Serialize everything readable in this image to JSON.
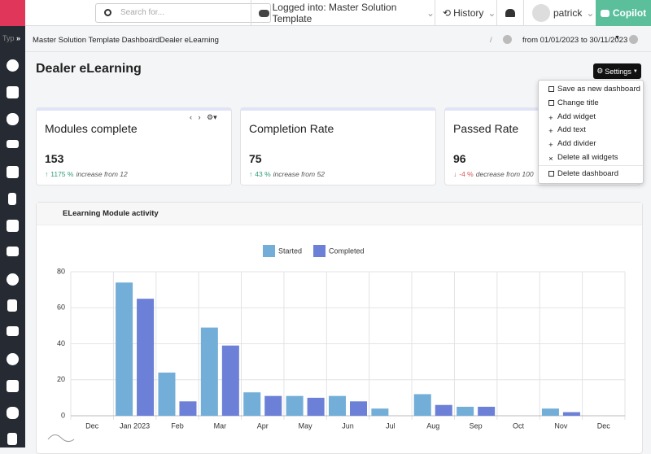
{
  "topbar": {
    "search_placeholder": "Search for...",
    "logged_into": "Logged into: Master Solution Template",
    "history": "History",
    "user": "patrick",
    "copilot": "Copilot"
  },
  "sidebar": {
    "tab": "Typ"
  },
  "breadcrumb": {
    "items": [
      "Master Solution Template Dashboard",
      "Dealer eLearning"
    ],
    "date_range": "from 01/01/2023 to 30/11/2023"
  },
  "page": {
    "title": "Dealer eLearning",
    "settings_button": "Settings"
  },
  "settings_menu": [
    "Save as new dashboard",
    "Change title",
    "Add widget",
    "Add text",
    "Add divider",
    "Delete all widgets",
    "Delete dashboard"
  ],
  "widgets": [
    {
      "title": "Modules complete",
      "value": "153",
      "change": "1175 %",
      "change_text": "increase from 12",
      "direction": "up",
      "color": "#2f9e76"
    },
    {
      "title": "Completion Rate",
      "value": "75",
      "change": "43 %",
      "change_text": "increase from 52",
      "direction": "up",
      "color": "#2f9e76"
    },
    {
      "title": "Passed Rate",
      "value": "96",
      "change": "-4 %",
      "change_text": "decrease from 100",
      "direction": "down",
      "color": "#d9534f"
    }
  ],
  "chart_data": {
    "type": "bar",
    "title": "ELearning Module activity",
    "categories": [
      "Dec",
      "Jan 2023",
      "Feb",
      "Mar",
      "Apr",
      "May",
      "Jun",
      "Jul",
      "Aug",
      "Sep",
      "Oct",
      "Nov",
      "Dec"
    ],
    "series": [
      {
        "name": "Started",
        "color": "#72aed8",
        "values": [
          0,
          74,
          24,
          49,
          13,
          11,
          11,
          4,
          12,
          5,
          0,
          4,
          0
        ]
      },
      {
        "name": "Completed",
        "color": "#6b80d6",
        "values": [
          0,
          65,
          8,
          39,
          11,
          10,
          8,
          0,
          6,
          5,
          0,
          2,
          0
        ]
      }
    ],
    "ylim": [
      0,
      80
    ],
    "yticks": [
      0,
      20,
      40,
      60,
      80
    ],
    "grid": true,
    "legend": "top"
  }
}
